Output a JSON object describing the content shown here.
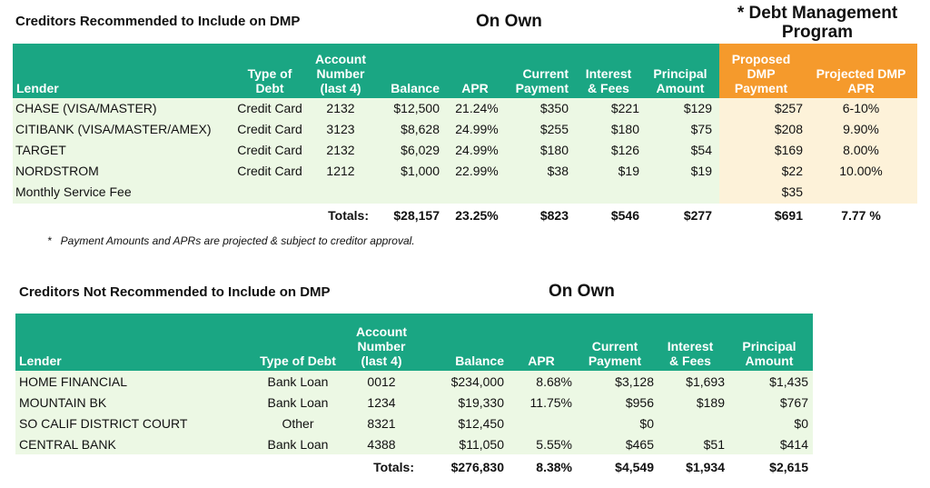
{
  "table1": {
    "title": "Creditors Recommended to Include on DMP",
    "own_heading": "On Own",
    "dmp_heading_line1": "* Debt Management",
    "dmp_heading_line2": "Program",
    "headers": {
      "lender": "Lender",
      "type1": "Type of",
      "type2": "Debt",
      "acct1": "Account",
      "acct2": "Number",
      "acct3": "(last 4)",
      "balance": "Balance",
      "apr": "APR",
      "curpay1": "Current",
      "curpay2": "Payment",
      "interest1": "Interest",
      "interest2": "& Fees",
      "principal1": "Principal",
      "principal2": "Amount",
      "proposed1": "Proposed",
      "proposed2": "DMP",
      "proposed3": "Payment",
      "projected1": "Projected DMP",
      "projected2": "APR"
    },
    "rows": [
      {
        "lender": "CHASE (VISA/MASTER)",
        "type": "Credit Card",
        "acct": "2132",
        "balance": "$12,500",
        "apr": "21.24%",
        "curpay": "$350",
        "interest": "$221",
        "principal": "$129",
        "proposed": "$257",
        "projected": "6-10%"
      },
      {
        "lender": "CITIBANK (VISA/MASTER/AMEX)",
        "type": "Credit Card",
        "acct": "3123",
        "balance": "$8,628",
        "apr": "24.99%",
        "curpay": "$255",
        "interest": "$180",
        "principal": "$75",
        "proposed": "$208",
        "projected": "9.90%"
      },
      {
        "lender": "TARGET",
        "type": "Credit Card",
        "acct": "2132",
        "balance": "$6,029",
        "apr": "24.99%",
        "curpay": "$180",
        "interest": "$126",
        "principal": "$54",
        "proposed": "$169",
        "projected": "8.00%"
      },
      {
        "lender": "NORDSTROM",
        "type": "Credit Card",
        "acct": "1212",
        "balance": "$1,000",
        "apr": "22.99%",
        "curpay": "$38",
        "interest": "$19",
        "principal": "$19",
        "proposed": "$22",
        "projected": "10.00%"
      },
      {
        "lender": "Monthly Service Fee",
        "type": "",
        "acct": "",
        "balance": "",
        "apr": "",
        "curpay": "",
        "interest": "",
        "principal": "",
        "proposed": "$35",
        "projected": ""
      }
    ],
    "totals": {
      "label": "Totals:",
      "balance": "$28,157",
      "apr": "23.25%",
      "curpay": "$823",
      "interest": "$546",
      "principal": "$277",
      "proposed": "$691",
      "projected": "7.77 %"
    },
    "footnote": "*   Payment Amounts and APRs are projected & subject to creditor approval."
  },
  "table2": {
    "title": "Creditors Not Recommended to Include on DMP",
    "own_heading": "On Own",
    "headers": {
      "lender": "Lender",
      "type": "Type of Debt",
      "acct1": "Account",
      "acct2": "Number",
      "acct3": "(last 4)",
      "balance": "Balance",
      "apr": "APR",
      "curpay1": "Current",
      "curpay2": "Payment",
      "interest1": "Interest",
      "interest2": "& Fees",
      "principal1": "Principal",
      "principal2": "Amount"
    },
    "rows": [
      {
        "lender": "HOME FINANCIAL",
        "type": "Bank Loan",
        "acct": "0012",
        "balance": "$234,000",
        "apr": "8.68%",
        "curpay": "$3,128",
        "interest": "$1,693",
        "principal": "$1,435"
      },
      {
        "lender": "MOUNTAIN BK",
        "type": "Bank Loan",
        "acct": "1234",
        "balance": "$19,330",
        "apr": "11.75%",
        "curpay": "$956",
        "interest": "$189",
        "principal": "$767"
      },
      {
        "lender": "SO CALIF DISTRICT COURT",
        "type": "Other",
        "acct": "8321",
        "balance": "$12,450",
        "apr": "",
        "curpay": "$0",
        "interest": "",
        "principal": "$0"
      },
      {
        "lender": "CENTRAL BANK",
        "type": "Bank Loan",
        "acct": "4388",
        "balance": "$11,050",
        "apr": "5.55%",
        "curpay": "$465",
        "interest": "$51",
        "principal": "$414"
      }
    ],
    "totals": {
      "label": "Totals:",
      "balance": "$276,830",
      "apr": "8.38%",
      "curpay": "$4,549",
      "interest": "$1,934",
      "principal": "$2,615"
    }
  },
  "colors": {
    "header_green": "#1aa683",
    "header_orange": "#f59a2c",
    "body_green": "#ecf8e4",
    "body_peach": "#fdf2d9"
  }
}
